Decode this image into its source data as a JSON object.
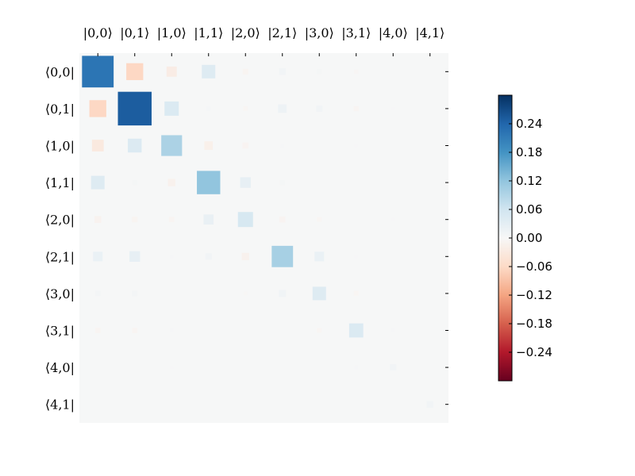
{
  "chart_data": {
    "type": "heatmap",
    "subtype": "hinton",
    "title": "",
    "xlabel": "",
    "ylabel": "",
    "x_tick_labels": [
      "|0,0⟩",
      "|0,1⟩",
      "|1,0⟩",
      "|1,1⟩",
      "|2,0⟩",
      "|2,1⟩",
      "|3,0⟩",
      "|3,1⟩",
      "|4,0⟩",
      "|4,1⟩"
    ],
    "y_tick_labels": [
      "⟨0,0|",
      "⟨0,1|",
      "⟨1,0|",
      "⟨1,1|",
      "⟨2,0|",
      "⟨2,1|",
      "⟨3,0|",
      "⟨3,1|",
      "⟨4,0|",
      "⟨4,1|"
    ],
    "matrix": [
      [
        0.22,
        -0.063,
        -0.023,
        0.04,
        -0.007,
        0.01,
        0.005,
        -0.004,
        0.0,
        0.0
      ],
      [
        -0.063,
        0.25,
        0.045,
        0.004,
        -0.005,
        0.016,
        0.009,
        -0.006,
        0.002,
        0.0
      ],
      [
        -0.03,
        0.042,
        0.095,
        -0.016,
        -0.008,
        0.003,
        0.001,
        0.002,
        0.001,
        0.001
      ],
      [
        0.04,
        0.005,
        -0.012,
        0.12,
        0.025,
        0.005,
        0.001,
        0.0,
        0.0,
        0.0
      ],
      [
        -0.01,
        -0.007,
        -0.006,
        0.022,
        0.05,
        -0.008,
        -0.005,
        0.001,
        0.002,
        0.0
      ],
      [
        0.02,
        0.025,
        0.003,
        0.009,
        -0.012,
        0.1,
        0.02,
        0.002,
        0.0,
        0.001
      ],
      [
        0.006,
        0.007,
        0.001,
        0.001,
        -0.003,
        0.011,
        0.04,
        -0.005,
        0.0,
        0.0
      ],
      [
        -0.006,
        -0.006,
        0.003,
        0.0,
        0.0,
        0.001,
        -0.005,
        0.044,
        0.003,
        0.0
      ],
      [
        0.001,
        0.001,
        0.002,
        0.0,
        0.001,
        0.0,
        0.001,
        0.003,
        0.009,
        0.001
      ],
      [
        0.0,
        0.0,
        0.001,
        0.0,
        0.0,
        0.0,
        0.0,
        0.0,
        0.001,
        0.01
      ]
    ],
    "colorbar": {
      "colormap": "RdBu",
      "vmin": -0.3,
      "vmax": 0.3,
      "ticks": [
        0.24,
        0.18,
        0.12,
        0.06,
        0.0,
        -0.06,
        -0.12,
        -0.18,
        -0.24
      ],
      "tick_labels": [
        "0.24",
        "0.18",
        "0.12",
        "0.06",
        "0.00",
        "−0.06",
        "−0.12",
        "−0.18",
        "−0.24"
      ],
      "position": "right"
    },
    "grid": false,
    "background_color": "#f6f7f7"
  }
}
